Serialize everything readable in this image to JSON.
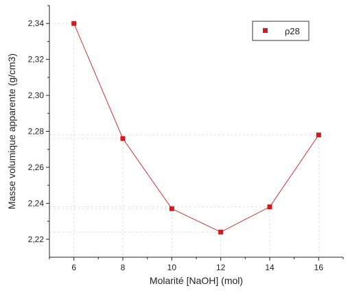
{
  "chart_data": {
    "type": "line",
    "xlabel": "Molarité [NaOH] (mol)",
    "ylabel": "Masse volumique apparente (g/cm3)",
    "x": [
      6,
      8,
      10,
      12,
      14,
      16
    ],
    "series": [
      {
        "name": "ρ28",
        "color": "#d7191c",
        "marker": "square",
        "y": [
          2.34,
          2.276,
          2.237,
          2.224,
          2.238,
          2.278
        ]
      }
    ],
    "xlim": [
      5,
      17
    ],
    "ylim": [
      2.21,
      2.35
    ],
    "x_ticks": [
      6,
      8,
      10,
      12,
      14,
      16
    ],
    "x_tick_labels": [
      "6",
      "8",
      "10",
      "12",
      "14",
      "16"
    ],
    "y_ticks": [
      2.22,
      2.24,
      2.26,
      2.28,
      2.3,
      2.32,
      2.34
    ],
    "y_tick_labels": [
      "2,22",
      "2,24",
      "2,26",
      "2,28",
      "2,30",
      "2,32",
      "2,34"
    ],
    "legend_position": "top-right",
    "drop_lines": true
  }
}
